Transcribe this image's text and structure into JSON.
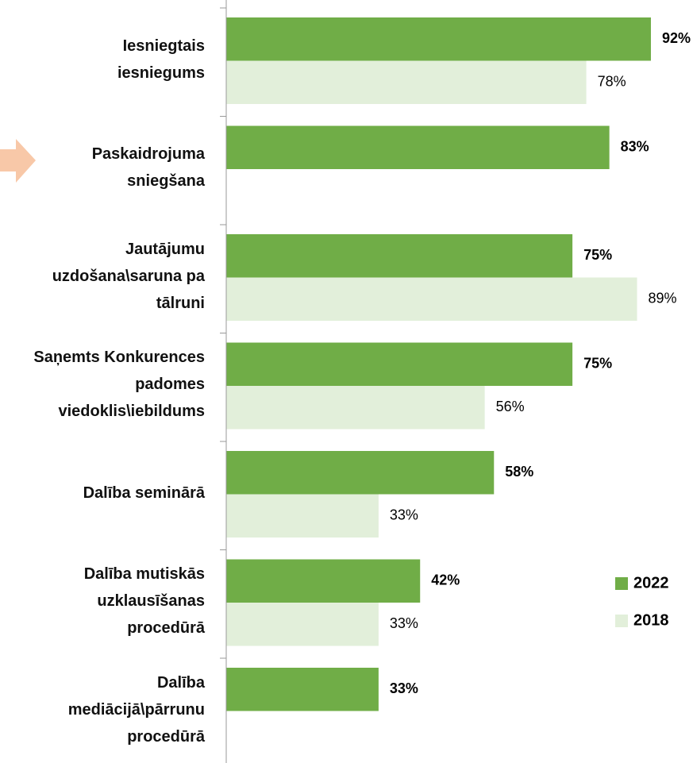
{
  "chart_data": {
    "type": "barh",
    "categories": [
      "Iesniegtais\niesniegums",
      "Paskaidrojuma\nsniegšana",
      "Jautājumu\nuzdošana\\saruna pa\ntālruni",
      "Saņemts Konkurences\npadomes\nviedoklis\\iebildums",
      "Dalība seminārā",
      "Dalība mutiskās\nuzklausīšanas\nprocedūrā",
      "Dalība\nmediācijā\\pārrunu\nprocedūrā"
    ],
    "series": [
      {
        "name": "2022",
        "color": "#70ad47",
        "values": [
          92,
          83,
          75,
          75,
          58,
          42,
          33
        ],
        "value_labels": [
          "92%",
          "83%",
          "75%",
          "75%",
          "58%",
          "42%",
          "33%"
        ]
      },
      {
        "name": "2018",
        "color": "#e2efda",
        "values": [
          78,
          null,
          89,
          56,
          33,
          33,
          null
        ],
        "value_labels": [
          "78%",
          null,
          "89%",
          "56%",
          "33%",
          "33%",
          null
        ]
      }
    ],
    "xlim": [
      0,
      100
    ],
    "legend": "right"
  }
}
